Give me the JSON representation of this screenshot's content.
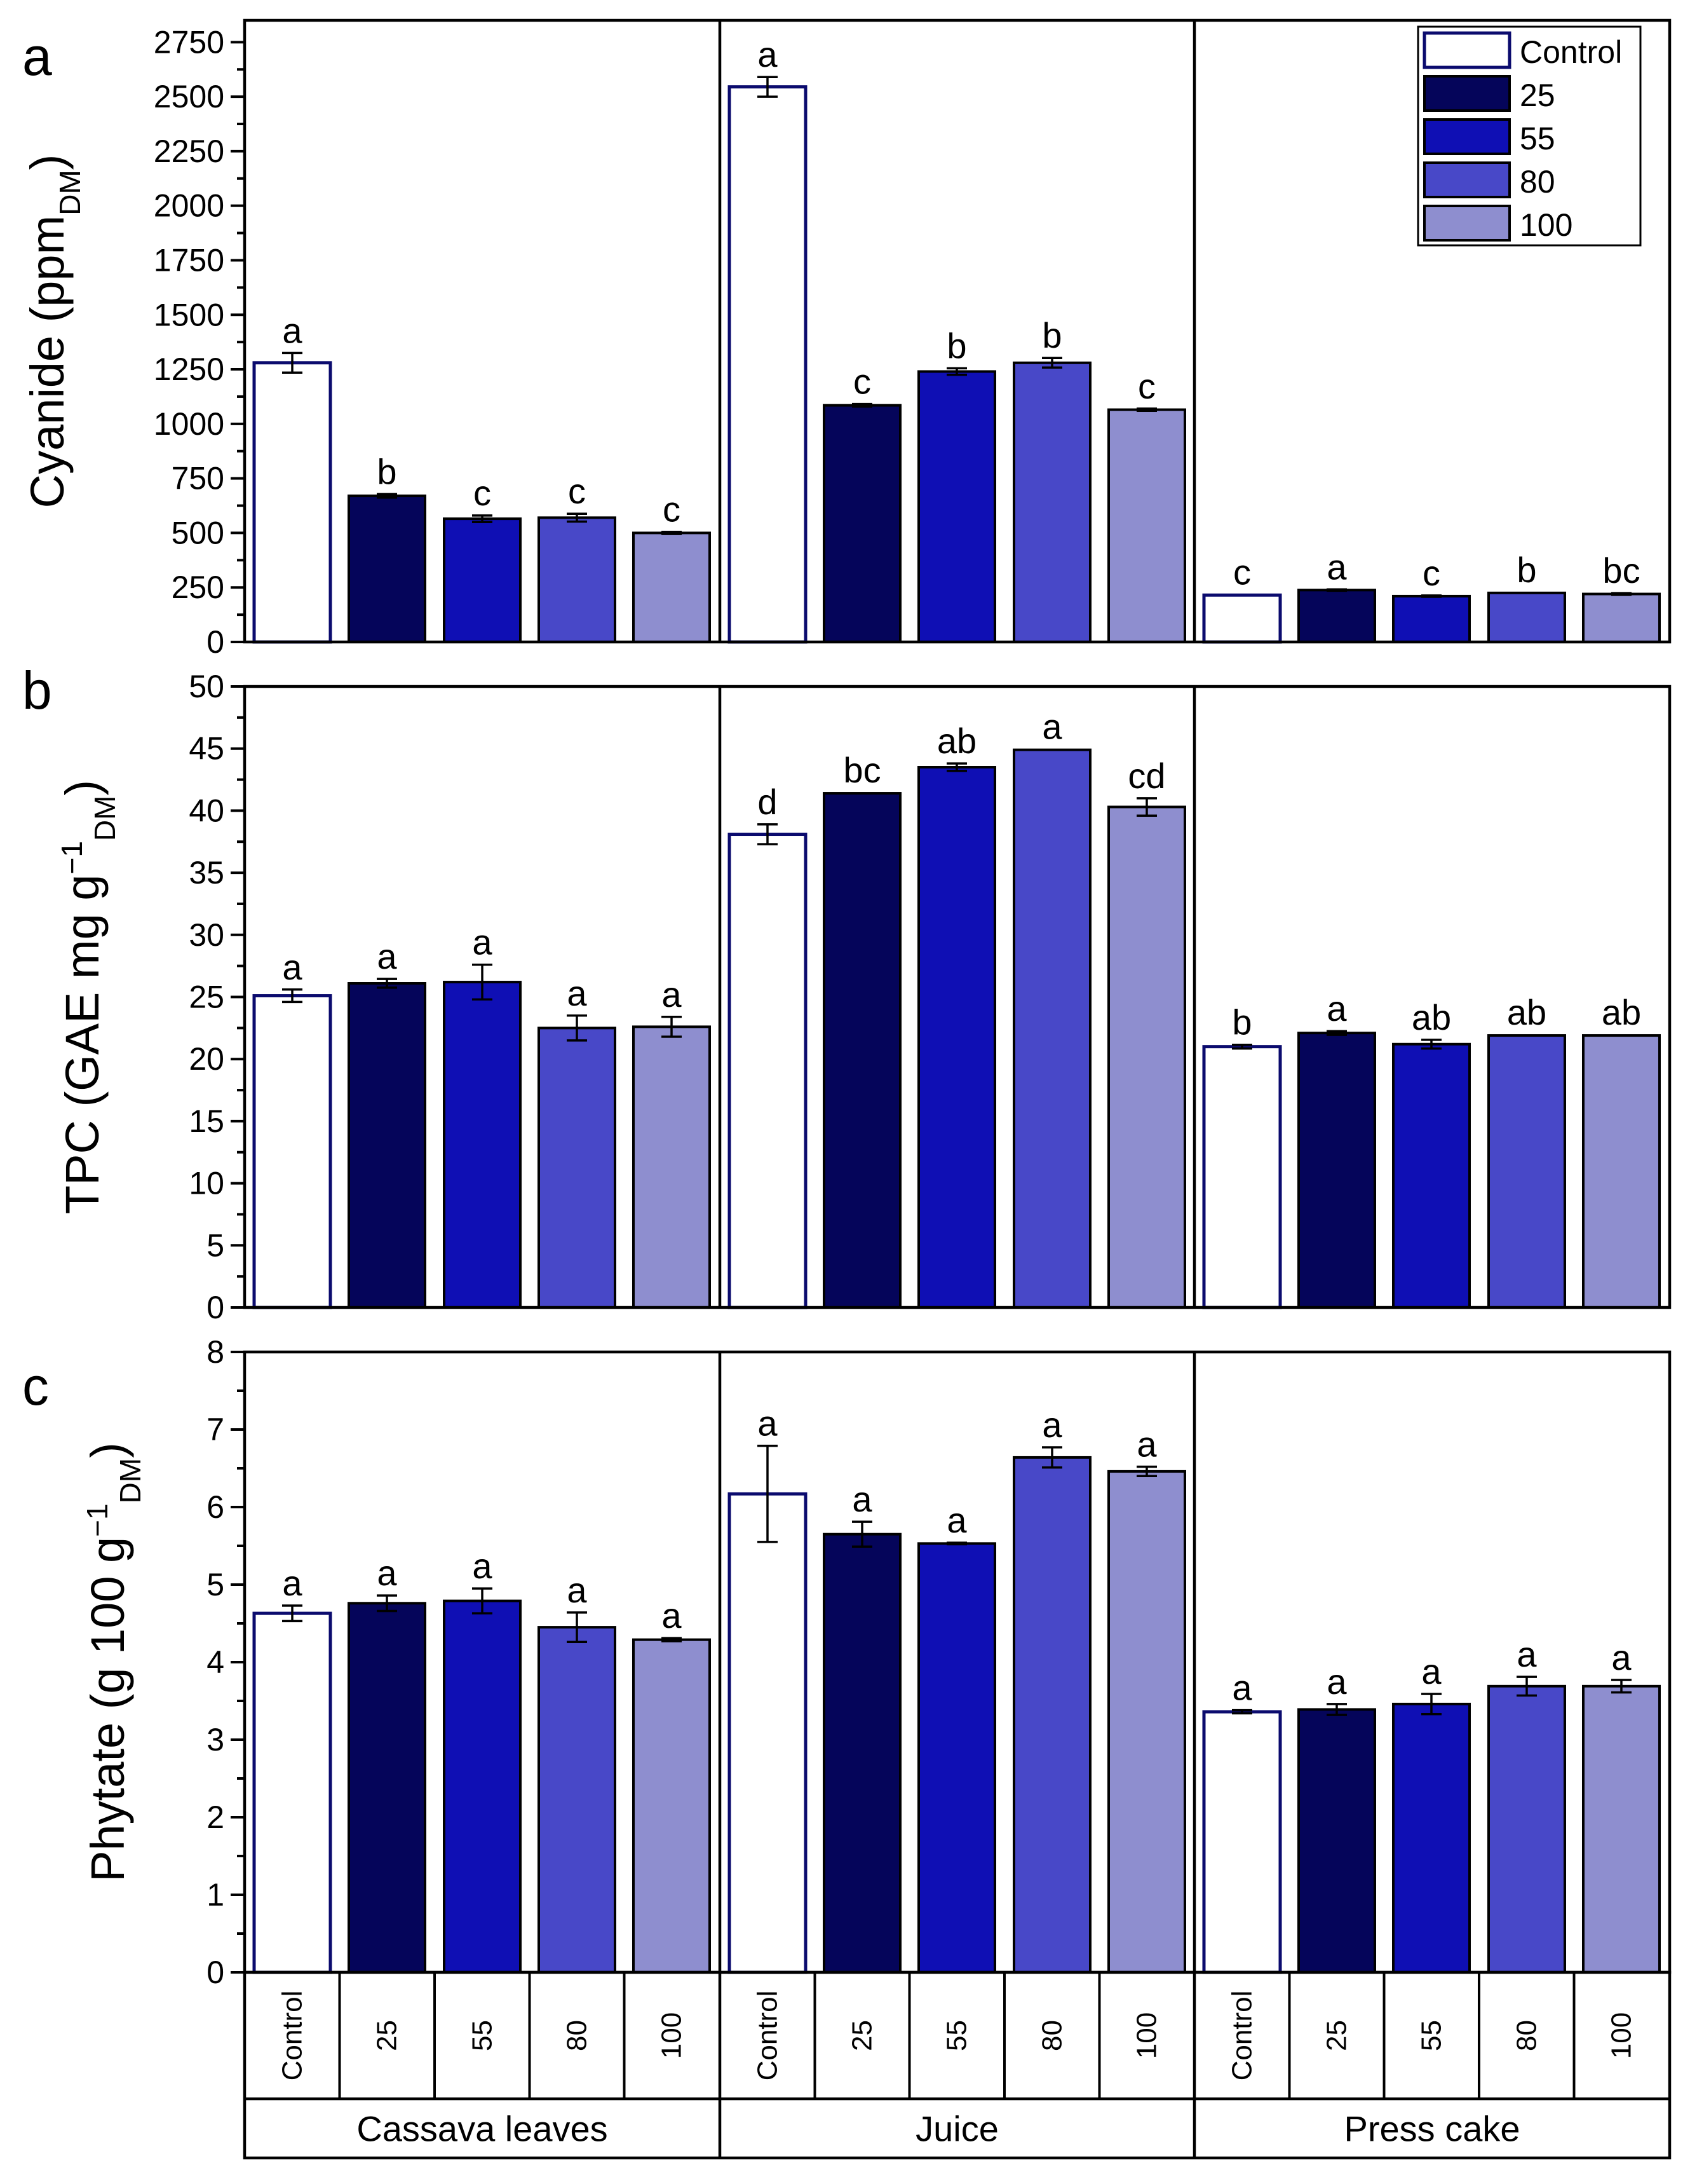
{
  "chart_data": [
    {
      "type": "bar",
      "panel": "a",
      "ylabel": "Cyanide (ppm",
      "ylabel_sub": "DM",
      "ylabel_tail": ")",
      "ylim": [
        0,
        2850
      ],
      "yticks": [
        0,
        250,
        500,
        750,
        1000,
        1250,
        1500,
        1750,
        2000,
        2250,
        2500,
        2750
      ],
      "groups": [
        "Cassava leaves",
        "Juice",
        "Press cake"
      ],
      "categories": [
        "Control",
        "25",
        "55",
        "80",
        "100"
      ],
      "values": [
        [
          1280,
          670,
          565,
          570,
          500
        ],
        [
          2545,
          1085,
          1240,
          1280,
          1065
        ],
        [
          215,
          238,
          210,
          225,
          220
        ]
      ],
      "errors": [
        [
          45,
          8,
          15,
          18,
          5
        ],
        [
          45,
          6,
          15,
          22,
          5
        ],
        [
          2,
          3,
          3,
          2,
          4
        ]
      ],
      "letters": [
        [
          "a",
          "b",
          "c",
          "c",
          "c"
        ],
        [
          "a",
          "c",
          "b",
          "b",
          "c"
        ],
        [
          "c",
          "a",
          "c",
          "b",
          "bc"
        ]
      ]
    },
    {
      "type": "bar",
      "panel": "b",
      "ylabel": "TPC (GAE mg g",
      "ylabel_sup": "−1",
      "ylabel_sub": "DM",
      "ylabel_tail": ")",
      "ylim": [
        0,
        50
      ],
      "yticks": [
        0,
        5,
        10,
        15,
        20,
        25,
        30,
        35,
        40,
        45,
        50
      ],
      "groups": [
        "Cassava leaves",
        "Juice",
        "Press cake"
      ],
      "categories": [
        "Control",
        "25",
        "55",
        "80",
        "100"
      ],
      "values": [
        [
          25.1,
          26.1,
          26.2,
          22.5,
          22.6
        ],
        [
          38.1,
          41.4,
          43.5,
          44.9,
          40.3
        ],
        [
          21.0,
          22.1,
          21.2,
          21.9,
          21.9
        ]
      ],
      "errors": [
        [
          0.5,
          0.35,
          1.4,
          1.0,
          0.8
        ],
        [
          0.8,
          0.05,
          0.3,
          0.05,
          0.7
        ],
        [
          0.15,
          0.15,
          0.35,
          0.05,
          0.05
        ]
      ],
      "letters": [
        [
          "a",
          "a",
          "a",
          "a",
          "a"
        ],
        [
          "d",
          "bc",
          "ab",
          "a",
          "cd"
        ],
        [
          "b",
          "a",
          "ab",
          "ab",
          "ab"
        ]
      ]
    },
    {
      "type": "bar",
      "panel": "c",
      "ylabel": "Phytate (g 100 g",
      "ylabel_sup": "−1",
      "ylabel_sub": "DM",
      "ylabel_tail": ")",
      "ylim": [
        0,
        8
      ],
      "yticks": [
        0,
        1,
        2,
        3,
        4,
        5,
        6,
        7,
        8
      ],
      "groups": [
        "Cassava leaves",
        "Juice",
        "Press cake"
      ],
      "categories": [
        "Control",
        "25",
        "55",
        "80",
        "100"
      ],
      "values": [
        [
          4.63,
          4.76,
          4.79,
          4.45,
          4.29
        ],
        [
          6.17,
          5.65,
          5.53,
          6.64,
          6.46
        ],
        [
          3.36,
          3.39,
          3.46,
          3.69,
          3.69
        ]
      ],
      "errors": [
        [
          0.1,
          0.1,
          0.16,
          0.19,
          0.02
        ],
        [
          0.62,
          0.16,
          0.01,
          0.13,
          0.06
        ],
        [
          0.02,
          0.07,
          0.13,
          0.12,
          0.08
        ]
      ],
      "letters": [
        [
          "a",
          "a",
          "a",
          "a",
          "a"
        ],
        [
          "a",
          "a",
          "a",
          "a",
          "a"
        ],
        [
          "a",
          "a",
          "a",
          "a",
          "a"
        ]
      ]
    }
  ],
  "colors": {
    "control_fill": "#ffffff",
    "control_stroke": "#0b0b6e",
    "c25": "#05055a",
    "c55": "#0f0fb4",
    "c80": "#4848c8",
    "c100": "#8e8ecf"
  },
  "legend": {
    "entries": [
      "Control",
      "25",
      "55",
      "80",
      "100"
    ],
    "position": "top-right"
  },
  "x_axis": {
    "categories": [
      "Control",
      "25",
      "55",
      "80",
      "100"
    ],
    "groups": [
      "Cassava leaves",
      "Juice",
      "Press cake"
    ]
  }
}
